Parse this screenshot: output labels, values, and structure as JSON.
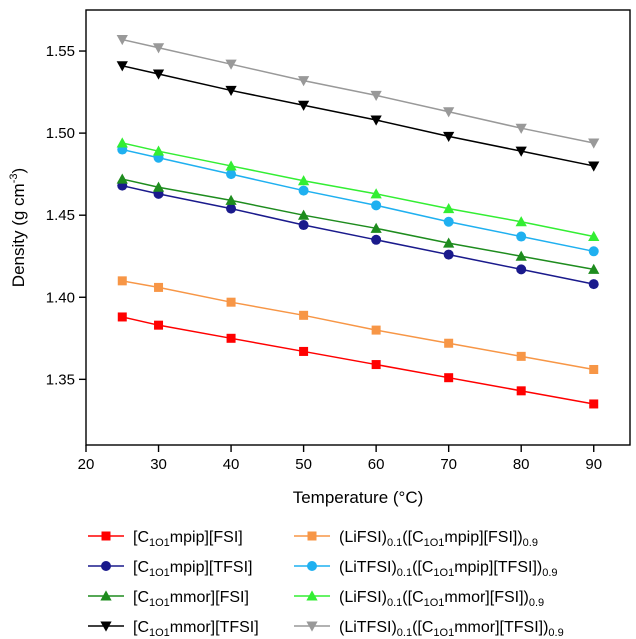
{
  "chart_data": {
    "type": "line",
    "xlabel": "Temperature (°C)",
    "ylabel_parts": {
      "main": "Density (g cm",
      "sup": "-3",
      "end": ")"
    },
    "xlim": [
      20,
      95
    ],
    "ylim": [
      1.31,
      1.575
    ],
    "x_ticks": [
      20,
      30,
      40,
      50,
      60,
      70,
      80,
      90
    ],
    "y_ticks": [
      1.35,
      1.4,
      1.45,
      1.5,
      1.55
    ],
    "y_tick_labels": [
      "1.35",
      "1.40",
      "1.45",
      "1.50",
      "1.55"
    ],
    "grid": false,
    "legend_position": "bottom",
    "x": [
      25,
      30,
      40,
      50,
      60,
      70,
      80,
      90
    ],
    "series": [
      {
        "name": "[C1O1mpip][FSI]",
        "legend_parts": [
          {
            "t": "[C"
          },
          {
            "sub": "1O1"
          },
          {
            "t": "mpip][FSI]"
          }
        ],
        "color": "#ff0000",
        "marker": "square",
        "values": [
          1.388,
          1.383,
          1.375,
          1.367,
          1.359,
          1.351,
          1.343,
          1.335
        ]
      },
      {
        "name": "(LiFSI)0.1([C1O1mpip][FSI])0.9",
        "legend_parts": [
          {
            "t": "(LiFSI)"
          },
          {
            "sub": "0.1"
          },
          {
            "t": "([C"
          },
          {
            "sub": "1O1"
          },
          {
            "t": "mpip][FSI])"
          },
          {
            "sub": "0.9"
          }
        ],
        "color": "#f79646",
        "marker": "square",
        "values": [
          1.41,
          1.406,
          1.397,
          1.389,
          1.38,
          1.372,
          1.364,
          1.356
        ]
      },
      {
        "name": "[C1O1mpip][TFSI]",
        "legend_parts": [
          {
            "t": "[C"
          },
          {
            "sub": "1O1"
          },
          {
            "t": "mpip][TFSI]"
          }
        ],
        "color": "#1a1a8c",
        "marker": "circle",
        "values": [
          1.468,
          1.463,
          1.454,
          1.444,
          1.435,
          1.426,
          1.417,
          1.408
        ]
      },
      {
        "name": "(LiTFSI)0.1([C1O1mpip][TFSI])0.9",
        "legend_parts": [
          {
            "t": "(LiTFSI)"
          },
          {
            "sub": "0.1"
          },
          {
            "t": "([C"
          },
          {
            "sub": "1O1"
          },
          {
            "t": "mpip][TFSI])"
          },
          {
            "sub": "0.9"
          }
        ],
        "color": "#1fb0f0",
        "marker": "circle",
        "values": [
          1.49,
          1.485,
          1.475,
          1.465,
          1.456,
          1.446,
          1.437,
          1.428
        ]
      },
      {
        "name": "[C1O1mmor][FSI]",
        "legend_parts": [
          {
            "t": "[C"
          },
          {
            "sub": "1O1"
          },
          {
            "t": "mmor][FSI]"
          }
        ],
        "color": "#1e8c1e",
        "marker": "triangle-up",
        "values": [
          1.472,
          1.467,
          1.459,
          1.45,
          1.442,
          1.433,
          1.425,
          1.417
        ]
      },
      {
        "name": "(LiFSI)0.1([C1O1mmor][FSI])0.9",
        "legend_parts": [
          {
            "t": "(LiFSI)"
          },
          {
            "sub": "0.1"
          },
          {
            "t": "([C"
          },
          {
            "sub": "1O1"
          },
          {
            "t": "mmor][FSI])"
          },
          {
            "sub": "0.9"
          }
        ],
        "color": "#33ee33",
        "marker": "triangle-up",
        "values": [
          1.494,
          1.489,
          1.48,
          1.471,
          1.463,
          1.454,
          1.446,
          1.437
        ]
      },
      {
        "name": "[C1O1mmor][TFSI]",
        "legend_parts": [
          {
            "t": "[C"
          },
          {
            "sub": "1O1"
          },
          {
            "t": "mmor][TFSI]"
          }
        ],
        "color": "#000000",
        "marker": "triangle-down",
        "values": [
          1.541,
          1.536,
          1.526,
          1.517,
          1.508,
          1.498,
          1.489,
          1.48
        ]
      },
      {
        "name": "(LiTFSI)0.1([C1O1mmor][TFSI])0.9",
        "legend_parts": [
          {
            "t": "(LiTFSI)"
          },
          {
            "sub": "0.1"
          },
          {
            "t": "([C"
          },
          {
            "sub": "1O1"
          },
          {
            "t": "mmor][TFSI])"
          },
          {
            "sub": "0.9"
          }
        ],
        "color": "#999999",
        "marker": "triangle-down",
        "values": [
          1.557,
          1.552,
          1.542,
          1.532,
          1.523,
          1.513,
          1.503,
          1.494
        ]
      }
    ]
  }
}
